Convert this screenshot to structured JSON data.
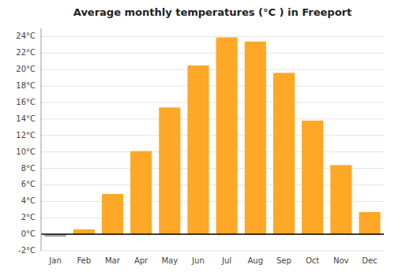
{
  "chart_data": {
    "type": "bar",
    "title": "Average monthly temperatures (°C ) in Freeport",
    "categories": [
      "Jan",
      "Feb",
      "Mar",
      "Apr",
      "May",
      "Jun",
      "Jul",
      "Aug",
      "Sep",
      "Oct",
      "Nov",
      "Dec"
    ],
    "values": [
      -0.3,
      0.6,
      4.9,
      10.1,
      15.4,
      20.5,
      23.9,
      23.4,
      19.6,
      13.8,
      8.4,
      2.7
    ],
    "colors": [
      "#AAAAAA",
      "#FFA726",
      "#FFA726",
      "#FFA726",
      "#FFA726",
      "#FFA726",
      "#FFA726",
      "#FFA726",
      "#FFA726",
      "#FFA726",
      "#FFA726",
      "#FFA726"
    ],
    "ylim": [
      -2,
      25
    ],
    "yticks": [
      {
        "value": -2,
        "label": "-2°C"
      },
      {
        "value": 0,
        "label": "0°C"
      },
      {
        "value": 2,
        "label": "2°C"
      },
      {
        "value": 4,
        "label": "4°C"
      },
      {
        "value": 6,
        "label": "6°C"
      },
      {
        "value": 8,
        "label": "8°C"
      },
      {
        "value": 10,
        "label": "10°C"
      },
      {
        "value": 12,
        "label": "12°C"
      },
      {
        "value": 14,
        "label": "14°C"
      },
      {
        "value": 16,
        "label": "16°C"
      },
      {
        "value": 18,
        "label": "18°C"
      },
      {
        "value": 20,
        "label": "20°C"
      },
      {
        "value": 22,
        "label": "22°C"
      },
      {
        "value": 24,
        "label": "24°C"
      }
    ],
    "grid": true
  }
}
